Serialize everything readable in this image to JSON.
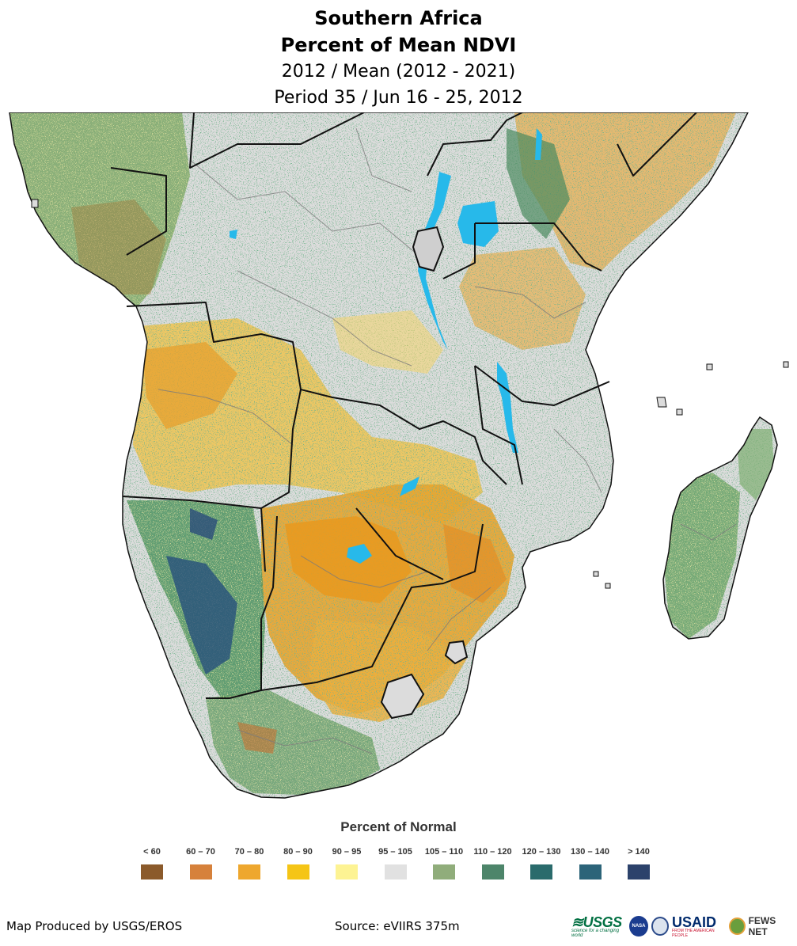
{
  "title": {
    "line1": "Southern Africa",
    "line2": "Percent of Mean NDVI",
    "line3": "2012 / Mean (2012 - 2021)",
    "line4": "Period 35 / Jun 16 - 25, 2012"
  },
  "legend": {
    "title": "Percent of Normal",
    "items": [
      {
        "label": "< 60",
        "color": "#8b5a2b"
      },
      {
        "label": "60 – 70",
        "color": "#d6813b"
      },
      {
        "label": "70 – 80",
        "color": "#eea72e"
      },
      {
        "label": "80 – 90",
        "color": "#f5c516"
      },
      {
        "label": "90 – 95",
        "color": "#fdf393"
      },
      {
        "label": "95 – 105",
        "color": "#e1e1e1"
      },
      {
        "label": "105 – 110",
        "color": "#90ad7b"
      },
      {
        "label": "110 – 120",
        "color": "#4d856a"
      },
      {
        "label": "120 – 130",
        "color": "#2a6b6c"
      },
      {
        "label": "130 – 140",
        "color": "#2c6479"
      },
      {
        "label": "> 140",
        "color": "#2c426b"
      }
    ]
  },
  "footer": {
    "producer": "Map Produced by USGS/EROS",
    "source": "Source: eVIIRS 375m"
  },
  "logos": {
    "usgs": "≋USGS",
    "usgs_tagline": "science for a changing world",
    "nasa": "NASA",
    "usaid": "USAID",
    "usaid_tagline": "FROM THE AMERICAN PEOPLE",
    "fews": "FEWS NET"
  },
  "map_colors": {
    "ocean": "#ffffff",
    "land_base": "#dcdcdc",
    "dry": "#eaa62c",
    "dry_light": "#f2c23e",
    "very_dry": "#d9892e",
    "wet": "#5f9a5a",
    "very_wet": "#2d5a85",
    "water": "#27b9ea",
    "border": "#111111",
    "admin": "#7a7a7a"
  }
}
